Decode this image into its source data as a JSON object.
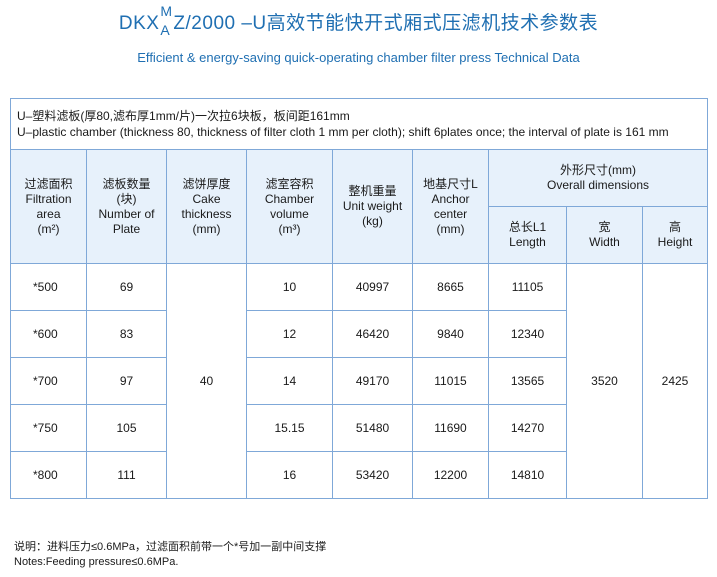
{
  "title": {
    "prefix": "DKX",
    "sup": "M",
    "sub": "A",
    "suffix": "Z/2000 –U高效节能快开式厢式压滤机技术参数表",
    "english": "Efficient & energy-saving quick-operating chamber filter press Technical Data"
  },
  "table_note": {
    "cn": "U–塑料滤板(厚80,滤布厚1mm/片)一次拉6块板，板间距161mm",
    "en": "U–plastic chamber (thickness 80, thickness of filter cloth 1 mm per cloth); shift 6plates once; the interval of plate is 161 mm"
  },
  "headers": {
    "filtration_area": [
      "过滤面积",
      "Filtration area",
      "(m²)"
    ],
    "plate_number": [
      "滤板数量",
      "(块)",
      "Number of",
      "Plate"
    ],
    "cake_thickness": [
      "滤饼厚度",
      "Cake",
      "thickness",
      "(mm)"
    ],
    "chamber_volume": [
      "滤室容积",
      "Chamber",
      "volume",
      "(m³)"
    ],
    "unit_weight": [
      "整机重量",
      "Unit weight",
      "(kg)"
    ],
    "anchor_center": [
      "地基尺寸L",
      "Anchor",
      "center",
      "(mm)"
    ],
    "overall": [
      "外形尺寸(mm)",
      "Overall  dimensions"
    ],
    "length": [
      "总长L1",
      "Length"
    ],
    "width": [
      "宽",
      "Width"
    ],
    "height": [
      "高",
      "Height"
    ]
  },
  "rows": [
    {
      "area": "*500",
      "plates": "69",
      "volume": "10",
      "weight": "40997",
      "anchor": "8665",
      "length": "11105"
    },
    {
      "area": "*600",
      "plates": "83",
      "volume": "12",
      "weight": "46420",
      "anchor": "9840",
      "length": "12340"
    },
    {
      "area": "*700",
      "plates": "97",
      "volume": "14",
      "weight": "49170",
      "anchor": "11015",
      "length": "13565"
    },
    {
      "area": "*750",
      "plates": "105",
      "volume": "15.15",
      "weight": "51480",
      "anchor": "11690",
      "length": "14270"
    },
    {
      "area": "*800",
      "plates": "111",
      "volume": "16",
      "weight": "53420",
      "anchor": "12200",
      "length": "14810"
    }
  ],
  "shared": {
    "cake_thickness": "40",
    "width": "3520",
    "height": "2425"
  },
  "notes": {
    "cn": "说明：进料压力≤0.6MPa，过滤面积前带一个*号加一副中间支撑",
    "en": "Notes:Feeding pressure≤0.6MPa."
  }
}
